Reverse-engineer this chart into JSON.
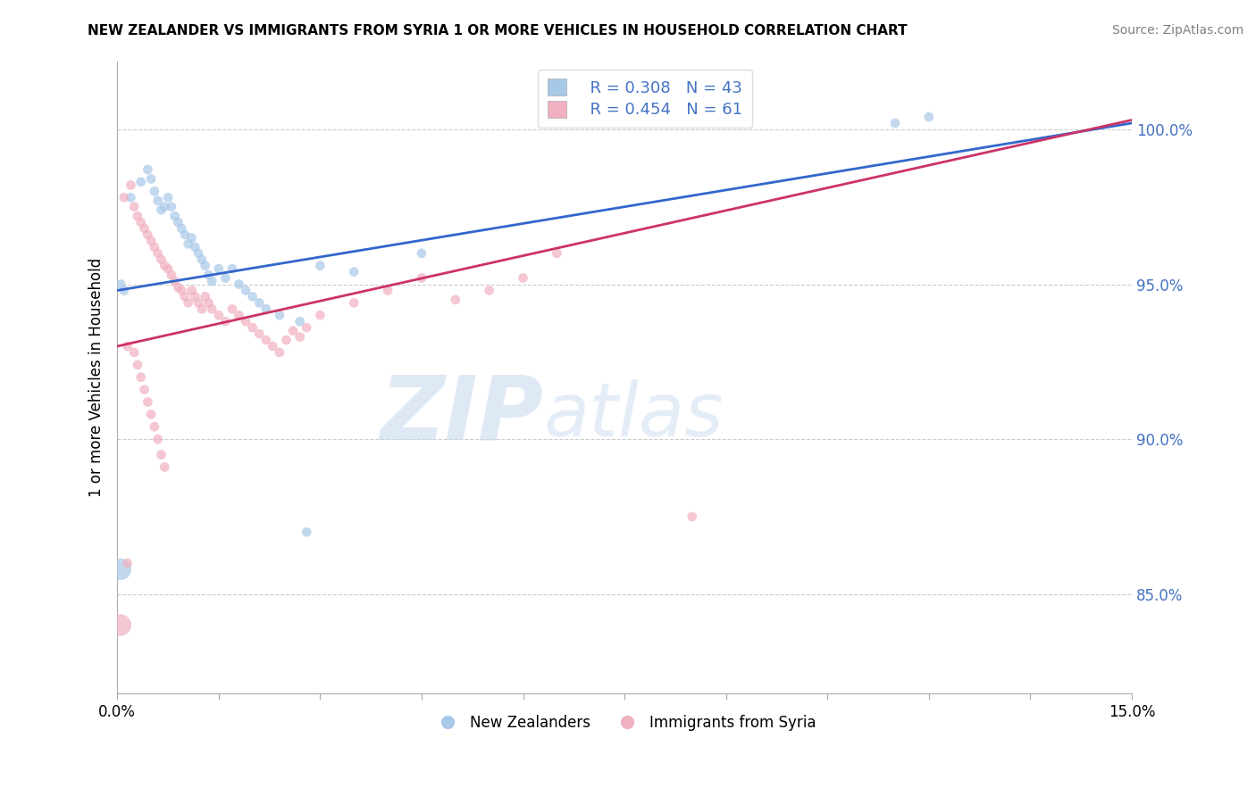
{
  "title": "NEW ZEALANDER VS IMMIGRANTS FROM SYRIA 1 OR MORE VEHICLES IN HOUSEHOLD CORRELATION CHART",
  "source": "Source: ZipAtlas.com",
  "ylabel": "1 or more Vehicles in Household",
  "ytick_labels": [
    "85.0%",
    "90.0%",
    "95.0%",
    "100.0%"
  ],
  "ytick_values": [
    0.85,
    0.9,
    0.95,
    1.0
  ],
  "xmin": 0.0,
  "xmax": 15.0,
  "ymin": 0.818,
  "ymax": 1.022,
  "legend_blue_r": "R = 0.308",
  "legend_blue_n": "N = 43",
  "legend_pink_r": "R = 0.454",
  "legend_pink_n": "N = 61",
  "blue_color": "#a8c8e8",
  "pink_color": "#f0b0c0",
  "blue_line_color": "#3366cc",
  "pink_line_color": "#cc3366",
  "blue_line_x0": 0.0,
  "blue_line_y0": 0.948,
  "blue_line_x1": 15.0,
  "blue_line_y1": 1.002,
  "pink_line_x0": 0.0,
  "pink_line_y0": 0.93,
  "pink_line_x1": 15.0,
  "pink_line_y1": 1.003,
  "blue_points": [
    [
      0.2,
      0.978
    ],
    [
      0.35,
      0.983
    ],
    [
      0.45,
      0.987
    ],
    [
      0.5,
      0.984
    ],
    [
      0.55,
      0.98
    ],
    [
      0.6,
      0.977
    ],
    [
      0.65,
      0.974
    ],
    [
      0.7,
      0.975
    ],
    [
      0.75,
      0.978
    ],
    [
      0.8,
      0.975
    ],
    [
      0.85,
      0.972
    ],
    [
      0.9,
      0.97
    ],
    [
      0.95,
      0.968
    ],
    [
      1.0,
      0.966
    ],
    [
      1.05,
      0.963
    ],
    [
      1.1,
      0.965
    ],
    [
      1.15,
      0.962
    ],
    [
      1.2,
      0.96
    ],
    [
      1.25,
      0.958
    ],
    [
      1.3,
      0.956
    ],
    [
      1.35,
      0.953
    ],
    [
      1.4,
      0.951
    ],
    [
      1.5,
      0.955
    ],
    [
      1.6,
      0.952
    ],
    [
      1.7,
      0.955
    ],
    [
      1.8,
      0.95
    ],
    [
      1.9,
      0.948
    ],
    [
      2.0,
      0.946
    ],
    [
      2.1,
      0.944
    ],
    [
      2.2,
      0.942
    ],
    [
      2.4,
      0.94
    ],
    [
      2.7,
      0.938
    ],
    [
      3.0,
      0.956
    ],
    [
      3.5,
      0.954
    ],
    [
      4.5,
      0.96
    ],
    [
      0.05,
      0.95
    ],
    [
      0.1,
      0.948
    ],
    [
      0.05,
      0.858
    ],
    [
      2.8,
      0.87
    ],
    [
      11.5,
      1.002
    ],
    [
      12.0,
      1.004
    ]
  ],
  "pink_points": [
    [
      0.1,
      0.978
    ],
    [
      0.2,
      0.982
    ],
    [
      0.25,
      0.975
    ],
    [
      0.3,
      0.972
    ],
    [
      0.35,
      0.97
    ],
    [
      0.4,
      0.968
    ],
    [
      0.45,
      0.966
    ],
    [
      0.5,
      0.964
    ],
    [
      0.55,
      0.962
    ],
    [
      0.6,
      0.96
    ],
    [
      0.65,
      0.958
    ],
    [
      0.7,
      0.956
    ],
    [
      0.75,
      0.955
    ],
    [
      0.8,
      0.953
    ],
    [
      0.85,
      0.951
    ],
    [
      0.9,
      0.949
    ],
    [
      0.95,
      0.948
    ],
    [
      1.0,
      0.946
    ],
    [
      1.05,
      0.944
    ],
    [
      1.1,
      0.948
    ],
    [
      1.15,
      0.946
    ],
    [
      1.2,
      0.944
    ],
    [
      1.25,
      0.942
    ],
    [
      1.3,
      0.946
    ],
    [
      1.35,
      0.944
    ],
    [
      1.4,
      0.942
    ],
    [
      1.5,
      0.94
    ],
    [
      1.6,
      0.938
    ],
    [
      1.7,
      0.942
    ],
    [
      1.8,
      0.94
    ],
    [
      1.9,
      0.938
    ],
    [
      2.0,
      0.936
    ],
    [
      2.1,
      0.934
    ],
    [
      2.2,
      0.932
    ],
    [
      2.3,
      0.93
    ],
    [
      2.4,
      0.928
    ],
    [
      2.5,
      0.932
    ],
    [
      2.6,
      0.935
    ],
    [
      2.7,
      0.933
    ],
    [
      2.8,
      0.936
    ],
    [
      3.0,
      0.94
    ],
    [
      3.5,
      0.944
    ],
    [
      4.0,
      0.948
    ],
    [
      4.5,
      0.952
    ],
    [
      5.0,
      0.945
    ],
    [
      5.5,
      0.948
    ],
    [
      6.0,
      0.952
    ],
    [
      0.15,
      0.93
    ],
    [
      0.25,
      0.928
    ],
    [
      0.3,
      0.924
    ],
    [
      0.35,
      0.92
    ],
    [
      0.4,
      0.916
    ],
    [
      0.45,
      0.912
    ],
    [
      0.5,
      0.908
    ],
    [
      0.55,
      0.904
    ],
    [
      0.6,
      0.9
    ],
    [
      0.65,
      0.895
    ],
    [
      0.7,
      0.891
    ],
    [
      0.05,
      0.84
    ],
    [
      0.15,
      0.86
    ],
    [
      6.5,
      0.96
    ],
    [
      8.5,
      0.875
    ]
  ],
  "blue_point_sizes": [
    60,
    60,
    60,
    60,
    60,
    60,
    60,
    60,
    60,
    60,
    60,
    60,
    60,
    60,
    60,
    60,
    60,
    60,
    60,
    60,
    60,
    60,
    60,
    60,
    60,
    60,
    60,
    60,
    60,
    60,
    60,
    60,
    60,
    60,
    60,
    60,
    60,
    300,
    60,
    60,
    60
  ],
  "pink_point_sizes": [
    60,
    60,
    60,
    60,
    60,
    60,
    60,
    60,
    60,
    60,
    60,
    60,
    60,
    60,
    60,
    60,
    60,
    60,
    60,
    60,
    60,
    60,
    60,
    60,
    60,
    60,
    60,
    60,
    60,
    60,
    60,
    60,
    60,
    60,
    60,
    60,
    60,
    60,
    60,
    60,
    60,
    60,
    60,
    60,
    60,
    60,
    60,
    60,
    60,
    60,
    60,
    60,
    60,
    60,
    60,
    60,
    60,
    60,
    300,
    60,
    60,
    60
  ]
}
